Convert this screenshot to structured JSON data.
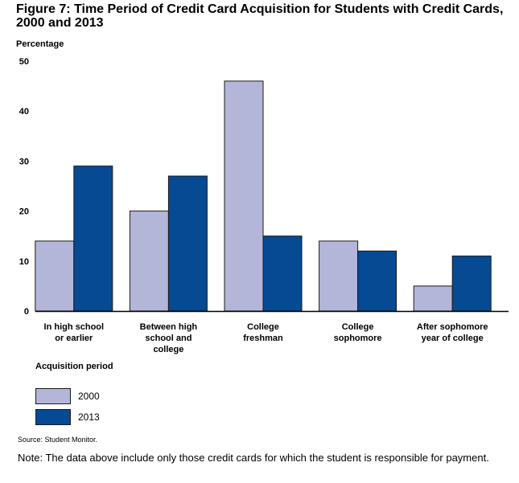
{
  "title_line1": "Figure 7: Time Period of Credit Card Acquisition for Students with Credit Cards,",
  "title_line2": "2000 and 2013",
  "legend_title": "Acquisition period",
  "source": "Source: Student Monitor.",
  "note": "Note: The data above include only those credit cards for which the student is responsible for payment.",
  "colors": {
    "2000": "#b4b6d9",
    "2013": "#064a93",
    "bar_stroke": "#1a1a1a"
  },
  "chart_data": {
    "type": "bar",
    "title": "Figure 7: Time Period of Credit Card Acquisition for Students with Credit Cards, 2000 and 2013",
    "ylabel": "Percentage",
    "xlabel": "Acquisition period",
    "ylim": [
      0,
      50
    ],
    "yticks": [
      0,
      10,
      20,
      30,
      40,
      50
    ],
    "grid": false,
    "legend_position": "bottom-left",
    "categories": [
      [
        "In high school",
        "or earlier"
      ],
      [
        "Between high",
        "school and",
        "college"
      ],
      [
        "College",
        "freshman"
      ],
      [
        "College",
        "sophomore"
      ],
      [
        "After sophomore",
        "year of college"
      ]
    ],
    "series": [
      {
        "name": "2000",
        "values": [
          14,
          20,
          46,
          14,
          5
        ]
      },
      {
        "name": "2013",
        "values": [
          29,
          27,
          15,
          12,
          11
        ]
      }
    ]
  }
}
